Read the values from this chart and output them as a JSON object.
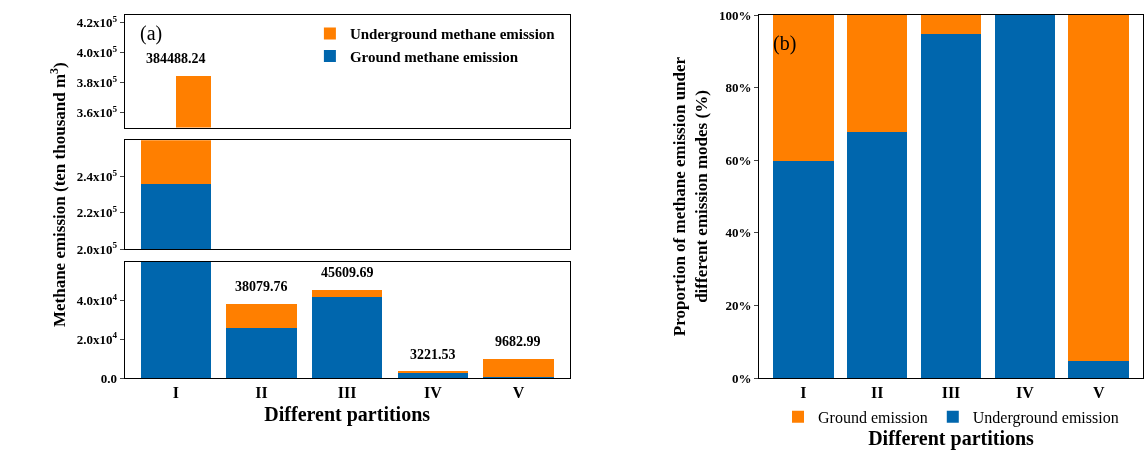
{
  "chart_data": [
    {
      "type": "bar",
      "categories": [
        "I",
        "II",
        "III",
        "IV",
        "V"
      ],
      "legend": "top right",
      "tick_labels": "y",
      "series": [
        {
          "name": "Ground methane emission",
          "color": "#0066ad",
          "values": [
            null,
            null,
            null,
            null,
            null
          ]
        },
        {
          "name": "Underground methane emission",
          "color": "#ff7f00",
          "base": [
            350000,
            null,
            null,
            null,
            null
          ],
          "values": [
            34488.24,
            null,
            null,
            null,
            null
          ]
        }
      ],
      "annotations": [
        "(a)",
        {
          "text": "384488.24",
          "x": "I",
          "y": 384488.24
        }
      ],
      "ylim": [
        350000,
        425000
      ],
      "yticks": [
        {
          "value": 360000,
          "label": "3.6x10$^{5}$"
        },
        {
          "value": 380000,
          "label": "3.8x10$^{5}$"
        },
        {
          "value": 400000,
          "label": "4.0x10$^{5}$"
        },
        {
          "value": 420000,
          "label": "4.2x10$^{5}$"
        }
      ]
    },
    {
      "type": "bar",
      "categories": [
        "I",
        "II",
        "III",
        "IV",
        "V"
      ],
      "ylabel": "Methane emission (ten thousand m$^{3}$)",
      "tick_labels": "y",
      "series": [
        {
          "color": "#0066ad",
          "base": [
            200000,
            null,
            null,
            null,
            null
          ],
          "values": [
            35700,
            null,
            null,
            null,
            null
          ]
        },
        {
          "color": "#ff7f00",
          "base": [
            235700,
            null,
            null,
            null,
            null
          ],
          "values": [
            24300,
            null,
            null,
            null,
            null
          ]
        }
      ],
      "ylim": [
        200000,
        260000
      ],
      "yticks": [
        {
          "value": 200000,
          "label": "2.0x10$^{5}$"
        },
        {
          "value": 220000,
          "label": "2.2x10$^{5}$"
        },
        {
          "value": 240000,
          "label": "2.4x10$^{5}$"
        }
      ]
    },
    {
      "type": "bar",
      "stacked": true,
      "categories": [
        "I",
        "II",
        "III",
        "IV",
        "V"
      ],
      "xlabel": "Different partitions",
      "series": [
        {
          "color": "#0066ad",
          "values": [
            60000,
            26000,
            41700,
            2800,
            480
          ]
        },
        {
          "color": "#ff7f00",
          "values": [
            null,
            12079.76,
            3909.69,
            421.53,
            9202.99
          ]
        }
      ],
      "totals": [
        null,
        "38079.76",
        "45609.69",
        "3221.53",
        "9682.99"
      ],
      "ylim": [
        0,
        60000
      ],
      "yticks": [
        {
          "value": 0,
          "label": "0.0"
        },
        {
          "value": 20000,
          "label": "2.0x10$^{4}$"
        },
        {
          "value": 40000,
          "label": "4.0x10$^{4}$"
        }
      ]
    },
    {
      "type": "bar",
      "stacked": true,
      "categories": [
        "I",
        "II",
        "III",
        "IV",
        "V"
      ],
      "annotations": [
        "(b)"
      ],
      "legend": "bottom",
      "xlabel": "Different partitions",
      "ylabel": "Proportion of methane emission under different emission modes (%)",
      "series": [
        {
          "name": "Underground emission",
          "color": "#0066ad",
          "values": [
            59.8,
            67.9,
            94.9,
            100,
            4.7
          ]
        },
        {
          "name": "Ground emission",
          "color": "#ff7f00",
          "values": [
            40.2,
            32.1,
            5.1,
            0,
            95.3
          ]
        }
      ],
      "ylim": [
        0,
        100
      ],
      "yticks": [
        {
          "value": 0,
          "label": "0%"
        },
        {
          "value": 20,
          "label": "20%"
        },
        {
          "value": 40,
          "label": "40%"
        },
        {
          "value": 60,
          "label": "60%"
        },
        {
          "value": 80,
          "label": "80%"
        },
        {
          "value": 100,
          "label": "100%"
        }
      ]
    }
  ]
}
